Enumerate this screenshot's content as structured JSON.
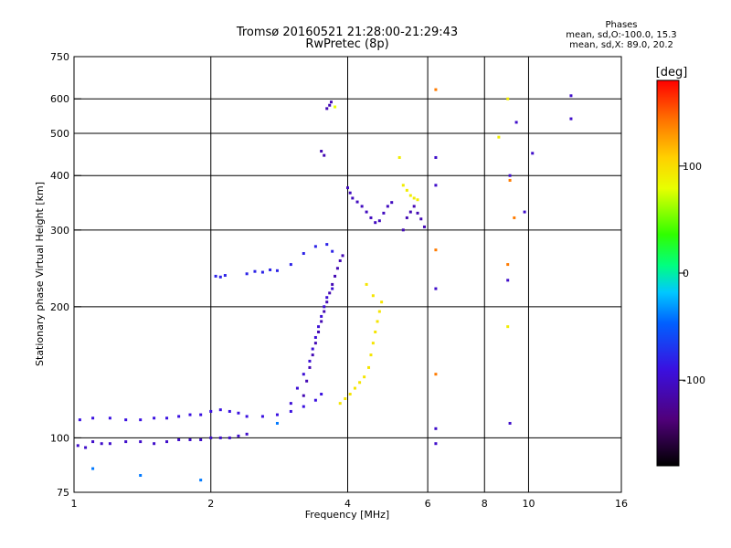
{
  "header": {
    "title": "Tromsø 20160521 21:28:00-21:29:43",
    "subtitle": "RwPretec (8p)"
  },
  "info": {
    "heading": "Phases",
    "line1": "mean, sd,O:-100.0, 15.3",
    "line2": "mean, sd,X:  89.0, 20.2"
  },
  "colorbar": {
    "label": "[deg]",
    "ticks": [
      {
        "value": 100,
        "label": "100"
      },
      {
        "value": 0,
        "label": "0"
      },
      {
        "value": -100,
        "label": "-100"
      }
    ],
    "range": [
      -180,
      180
    ]
  },
  "chart_data": {
    "type": "scatter",
    "title": "Tromsø 20160521 21:28:00-21:29:43",
    "subtitle": "RwPretec (8p)",
    "xlabel": "Frequency [MHz]",
    "ylabel": "Stationary phase Virtual Height [km]",
    "x_scale": "log",
    "y_scale": "log",
    "xlim": [
      1,
      16
    ],
    "ylim": [
      75,
      750
    ],
    "x_ticks": [
      {
        "value": 1,
        "label": "1"
      },
      {
        "value": 2,
        "label": "2"
      },
      {
        "value": 4,
        "label": "4"
      },
      {
        "value": 6,
        "label": "6"
      },
      {
        "value": 8,
        "label": "8"
      },
      {
        "value": 10,
        "label": "10"
      },
      {
        "value": 16,
        "label": "16"
      }
    ],
    "y_ticks": [
      {
        "value": 75,
        "label": "75"
      },
      {
        "value": 100,
        "label": "100"
      },
      {
        "value": 200,
        "label": "200"
      },
      {
        "value": 300,
        "label": "300"
      },
      {
        "value": 400,
        "label": "400"
      },
      {
        "value": 500,
        "label": "500"
      },
      {
        "value": 600,
        "label": "600"
      },
      {
        "value": 750,
        "label": "750"
      }
    ],
    "grid_x": [
      1,
      2,
      4,
      6,
      8,
      10,
      16
    ],
    "grid_y": [
      100,
      200,
      300,
      400,
      500,
      600
    ],
    "grid": true,
    "color_scale": {
      "label": "[deg]",
      "min": -180,
      "max": 180
    },
    "series": [
      {
        "phase": -100,
        "points": [
          [
            1.02,
            96
          ],
          [
            1.06,
            95
          ],
          [
            1.1,
            98
          ],
          [
            1.15,
            97
          ],
          [
            1.2,
            97
          ],
          [
            1.3,
            98
          ],
          [
            1.4,
            98
          ],
          [
            1.5,
            97
          ],
          [
            1.6,
            98
          ],
          [
            1.7,
            99
          ],
          [
            1.8,
            99
          ],
          [
            1.9,
            99
          ],
          [
            2.0,
            100
          ],
          [
            2.1,
            100
          ],
          [
            2.2,
            100
          ],
          [
            2.3,
            101
          ],
          [
            2.4,
            102
          ]
        ]
      },
      {
        "phase": -90,
        "points": [
          [
            1.03,
            110
          ],
          [
            1.1,
            111
          ],
          [
            1.2,
            111
          ],
          [
            1.3,
            110
          ],
          [
            1.4,
            110
          ],
          [
            1.5,
            111
          ],
          [
            1.6,
            111
          ],
          [
            1.7,
            112
          ],
          [
            1.8,
            113
          ],
          [
            1.9,
            113
          ],
          [
            2.0,
            115
          ],
          [
            2.1,
            116
          ],
          [
            2.2,
            115
          ],
          [
            2.3,
            114
          ],
          [
            2.4,
            112
          ],
          [
            2.6,
            112
          ],
          [
            2.8,
            113
          ],
          [
            3.0,
            115
          ],
          [
            3.2,
            118
          ],
          [
            3.4,
            122
          ],
          [
            3.5,
            126
          ]
        ]
      },
      {
        "phase": -110,
        "points": [
          [
            3.2,
            125
          ],
          [
            3.25,
            135
          ],
          [
            3.3,
            145
          ],
          [
            3.35,
            155
          ],
          [
            3.4,
            165
          ],
          [
            3.45,
            175
          ],
          [
            3.5,
            185
          ],
          [
            3.55,
            195
          ],
          [
            3.6,
            205
          ],
          [
            3.65,
            215
          ],
          [
            3.7,
            225
          ],
          [
            3.75,
            235
          ],
          [
            3.8,
            245
          ],
          [
            3.85,
            255
          ],
          [
            3.9,
            262
          ]
        ]
      },
      {
        "phase": -95,
        "points": [
          [
            3.0,
            120
          ],
          [
            3.1,
            130
          ],
          [
            3.2,
            140
          ],
          [
            3.3,
            150
          ],
          [
            3.35,
            160
          ],
          [
            3.4,
            170
          ],
          [
            3.45,
            180
          ],
          [
            3.5,
            190
          ],
          [
            3.55,
            200
          ],
          [
            3.6,
            210
          ],
          [
            3.7,
            220
          ]
        ]
      },
      {
        "phase": -80,
        "points": [
          [
            2.05,
            235
          ],
          [
            2.1,
            234
          ],
          [
            2.15,
            236
          ],
          [
            2.4,
            238
          ],
          [
            2.5,
            241
          ],
          [
            2.6,
            240
          ],
          [
            2.7,
            243
          ],
          [
            2.8,
            242
          ],
          [
            3.0,
            250
          ],
          [
            3.2,
            265
          ],
          [
            3.4,
            275
          ],
          [
            3.6,
            278
          ],
          [
            3.7,
            268
          ]
        ]
      },
      {
        "phase": 95,
        "points": [
          [
            3.85,
            120
          ],
          [
            3.95,
            123
          ],
          [
            4.05,
            126
          ],
          [
            4.15,
            130
          ],
          [
            4.25,
            134
          ],
          [
            4.35,
            138
          ],
          [
            4.45,
            145
          ],
          [
            4.5,
            155
          ],
          [
            4.55,
            165
          ],
          [
            4.6,
            175
          ],
          [
            4.65,
            185
          ],
          [
            4.7,
            195
          ],
          [
            4.75,
            205
          ],
          [
            4.4,
            225
          ],
          [
            4.55,
            212
          ]
        ]
      },
      {
        "phase": -105,
        "points": [
          [
            4.0,
            375
          ],
          [
            4.05,
            365
          ],
          [
            4.1,
            355
          ],
          [
            4.2,
            348
          ],
          [
            4.3,
            340
          ],
          [
            4.4,
            330
          ],
          [
            4.5,
            320
          ],
          [
            4.6,
            312
          ],
          [
            4.7,
            315
          ],
          [
            4.8,
            328
          ],
          [
            4.9,
            340
          ],
          [
            5.0,
            347
          ]
        ]
      },
      {
        "phase": -110,
        "points": [
          [
            5.3,
            300
          ],
          [
            5.4,
            320
          ],
          [
            5.5,
            330
          ],
          [
            5.6,
            340
          ],
          [
            5.7,
            328
          ],
          [
            5.8,
            318
          ],
          [
            5.9,
            305
          ]
        ]
      },
      {
        "phase": 90,
        "points": [
          [
            5.2,
            440
          ],
          [
            5.3,
            380
          ],
          [
            5.4,
            370
          ],
          [
            5.5,
            360
          ],
          [
            5.6,
            355
          ],
          [
            5.7,
            352
          ]
        ]
      },
      {
        "phase": -110,
        "points": [
          [
            3.6,
            570
          ],
          [
            3.65,
            580
          ],
          [
            3.68,
            590
          ],
          [
            3.5,
            455
          ],
          [
            3.55,
            445
          ]
        ]
      },
      {
        "phase": 80,
        "points": [
          [
            3.75,
            575
          ]
        ]
      },
      {
        "phase": -100,
        "points": [
          [
            6.25,
            440
          ],
          [
            6.25,
            380
          ],
          [
            6.25,
            220
          ],
          [
            6.25,
            105
          ],
          [
            6.25,
            97
          ]
        ]
      },
      {
        "phase": 140,
        "points": [
          [
            6.25,
            630
          ],
          [
            6.25,
            140
          ],
          [
            6.25,
            270
          ]
        ]
      },
      {
        "phase": -100,
        "points": [
          [
            9.1,
            400
          ],
          [
            9.1,
            108
          ],
          [
            9.4,
            530
          ],
          [
            9.8,
            330
          ],
          [
            10.2,
            450
          ],
          [
            12.4,
            610
          ],
          [
            12.4,
            540
          ],
          [
            9.0,
            230
          ]
        ]
      },
      {
        "phase": 140,
        "points": [
          [
            9.0,
            250
          ],
          [
            9.1,
            390
          ],
          [
            9.3,
            320
          ]
        ]
      },
      {
        "phase": 90,
        "points": [
          [
            8.6,
            490
          ],
          [
            9.0,
            600
          ],
          [
            9.0,
            180
          ]
        ]
      },
      {
        "phase": -40,
        "points": [
          [
            1.1,
            85
          ],
          [
            1.4,
            82
          ],
          [
            1.9,
            80
          ],
          [
            2.8,
            108
          ]
        ]
      }
    ]
  }
}
